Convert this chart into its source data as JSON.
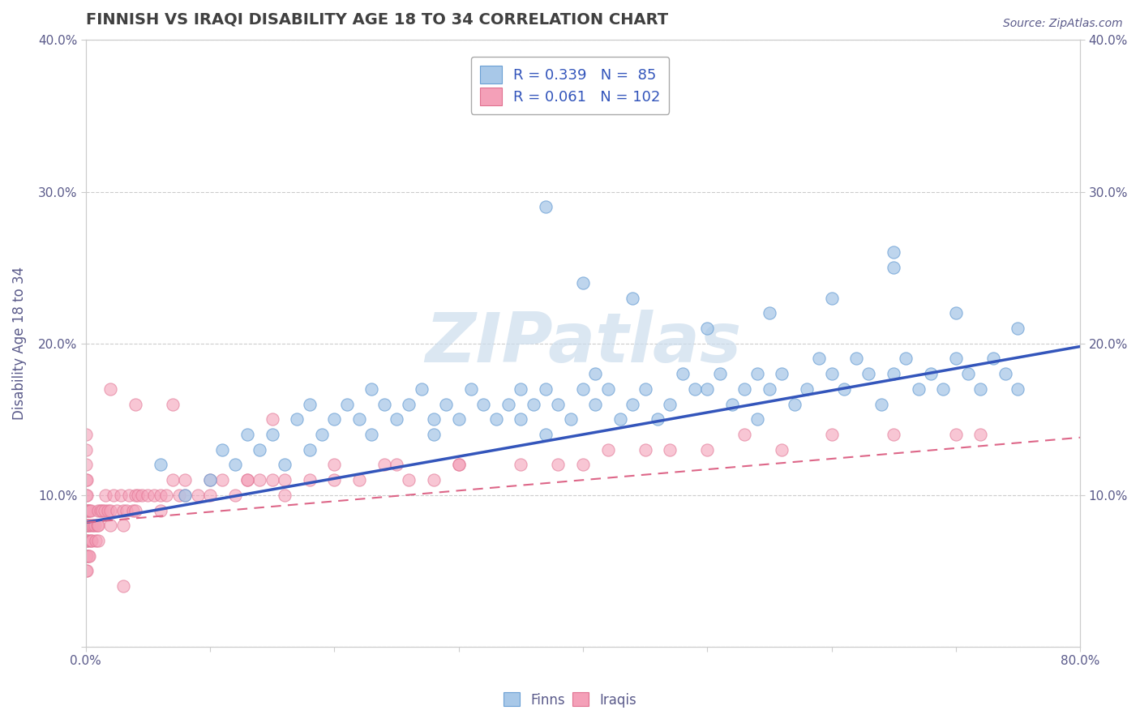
{
  "title": "FINNISH VS IRAQI DISABILITY AGE 18 TO 34 CORRELATION CHART",
  "source": "Source: ZipAtlas.com",
  "ylabel": "Disability Age 18 to 34",
  "xlim": [
    0.0,
    0.8
  ],
  "ylim": [
    0.0,
    0.4
  ],
  "legend_r_finn": "R = 0.339",
  "legend_n_finn": "N =  85",
  "legend_r_iraqi": "R = 0.061",
  "legend_n_iraqi": "N = 102",
  "finn_color": "#a8c8e8",
  "finn_edge_color": "#6a9fd4",
  "iraqi_color": "#f4a0b8",
  "iraqi_edge_color": "#e07090",
  "finn_line_color": "#3355bb",
  "iraqi_line_color": "#dd6688",
  "watermark_color": "#ccdded",
  "title_color": "#404040",
  "axis_label_color": "#5a5a8a",
  "tick_color": "#5a5a8a",
  "grid_color": "#cccccc",
  "background_color": "#ffffff",
  "finn_x": [
    0.06,
    0.08,
    0.1,
    0.11,
    0.12,
    0.13,
    0.14,
    0.15,
    0.16,
    0.17,
    0.18,
    0.18,
    0.19,
    0.2,
    0.21,
    0.22,
    0.23,
    0.23,
    0.24,
    0.25,
    0.26,
    0.27,
    0.28,
    0.28,
    0.29,
    0.3,
    0.31,
    0.32,
    0.33,
    0.34,
    0.35,
    0.35,
    0.36,
    0.37,
    0.37,
    0.38,
    0.39,
    0.4,
    0.41,
    0.41,
    0.42,
    0.43,
    0.44,
    0.45,
    0.46,
    0.47,
    0.48,
    0.49,
    0.5,
    0.51,
    0.52,
    0.53,
    0.54,
    0.54,
    0.55,
    0.56,
    0.57,
    0.58,
    0.59,
    0.6,
    0.61,
    0.62,
    0.63,
    0.64,
    0.65,
    0.66,
    0.67,
    0.68,
    0.69,
    0.7,
    0.71,
    0.72,
    0.73,
    0.74,
    0.75,
    0.4,
    0.44,
    0.5,
    0.55,
    0.6,
    0.65,
    0.7,
    0.75,
    0.37,
    0.65
  ],
  "finn_y": [
    0.12,
    0.1,
    0.11,
    0.13,
    0.12,
    0.14,
    0.13,
    0.14,
    0.12,
    0.15,
    0.13,
    0.16,
    0.14,
    0.15,
    0.16,
    0.15,
    0.14,
    0.17,
    0.16,
    0.15,
    0.16,
    0.17,
    0.14,
    0.15,
    0.16,
    0.15,
    0.17,
    0.16,
    0.15,
    0.16,
    0.17,
    0.15,
    0.16,
    0.17,
    0.14,
    0.16,
    0.15,
    0.17,
    0.16,
    0.18,
    0.17,
    0.15,
    0.16,
    0.17,
    0.15,
    0.16,
    0.18,
    0.17,
    0.17,
    0.18,
    0.16,
    0.17,
    0.18,
    0.15,
    0.17,
    0.18,
    0.16,
    0.17,
    0.19,
    0.18,
    0.17,
    0.19,
    0.18,
    0.16,
    0.18,
    0.19,
    0.17,
    0.18,
    0.17,
    0.19,
    0.18,
    0.17,
    0.19,
    0.18,
    0.17,
    0.24,
    0.23,
    0.21,
    0.22,
    0.23,
    0.25,
    0.22,
    0.21,
    0.29,
    0.26
  ],
  "iraqi_x": [
    0.0,
    0.0,
    0.0,
    0.0,
    0.0,
    0.0,
    0.0,
    0.0,
    0.0,
    0.0,
    0.001,
    0.001,
    0.001,
    0.001,
    0.001,
    0.001,
    0.001,
    0.002,
    0.002,
    0.002,
    0.002,
    0.003,
    0.003,
    0.003,
    0.004,
    0.004,
    0.005,
    0.005,
    0.006,
    0.007,
    0.008,
    0.009,
    0.01,
    0.01,
    0.012,
    0.013,
    0.015,
    0.016,
    0.018,
    0.02,
    0.022,
    0.025,
    0.028,
    0.03,
    0.033,
    0.035,
    0.038,
    0.04,
    0.042,
    0.045,
    0.05,
    0.055,
    0.06,
    0.065,
    0.07,
    0.075,
    0.08,
    0.09,
    0.1,
    0.11,
    0.12,
    0.13,
    0.14,
    0.15,
    0.16,
    0.18,
    0.2,
    0.22,
    0.24,
    0.26,
    0.28,
    0.3,
    0.35,
    0.38,
    0.4,
    0.42,
    0.45,
    0.47,
    0.5,
    0.53,
    0.56,
    0.6,
    0.65,
    0.7,
    0.72,
    0.01,
    0.02,
    0.03,
    0.04,
    0.06,
    0.08,
    0.1,
    0.13,
    0.16,
    0.2,
    0.25,
    0.3,
    0.15,
    0.07,
    0.04,
    0.02,
    0.03
  ],
  "iraqi_y": [
    0.05,
    0.06,
    0.07,
    0.08,
    0.09,
    0.1,
    0.11,
    0.12,
    0.13,
    0.14,
    0.05,
    0.06,
    0.07,
    0.08,
    0.09,
    0.1,
    0.11,
    0.06,
    0.07,
    0.08,
    0.09,
    0.06,
    0.08,
    0.09,
    0.07,
    0.09,
    0.07,
    0.08,
    0.08,
    0.08,
    0.07,
    0.08,
    0.08,
    0.09,
    0.09,
    0.09,
    0.09,
    0.1,
    0.09,
    0.09,
    0.1,
    0.09,
    0.1,
    0.09,
    0.09,
    0.1,
    0.09,
    0.1,
    0.1,
    0.1,
    0.1,
    0.1,
    0.1,
    0.1,
    0.11,
    0.1,
    0.11,
    0.1,
    0.11,
    0.11,
    0.1,
    0.11,
    0.11,
    0.11,
    0.1,
    0.11,
    0.11,
    0.11,
    0.12,
    0.11,
    0.11,
    0.12,
    0.12,
    0.12,
    0.12,
    0.13,
    0.13,
    0.13,
    0.13,
    0.14,
    0.13,
    0.14,
    0.14,
    0.14,
    0.14,
    0.07,
    0.08,
    0.08,
    0.09,
    0.09,
    0.1,
    0.1,
    0.11,
    0.11,
    0.12,
    0.12,
    0.12,
    0.15,
    0.16,
    0.16,
    0.17,
    0.04
  ],
  "finn_line_x0": 0.0,
  "finn_line_x1": 0.8,
  "finn_line_y0": 0.082,
  "finn_line_y1": 0.198,
  "iraqi_line_x0": 0.0,
  "iraqi_line_x1": 0.8,
  "iraqi_line_y0": 0.082,
  "iraqi_line_y1": 0.138
}
